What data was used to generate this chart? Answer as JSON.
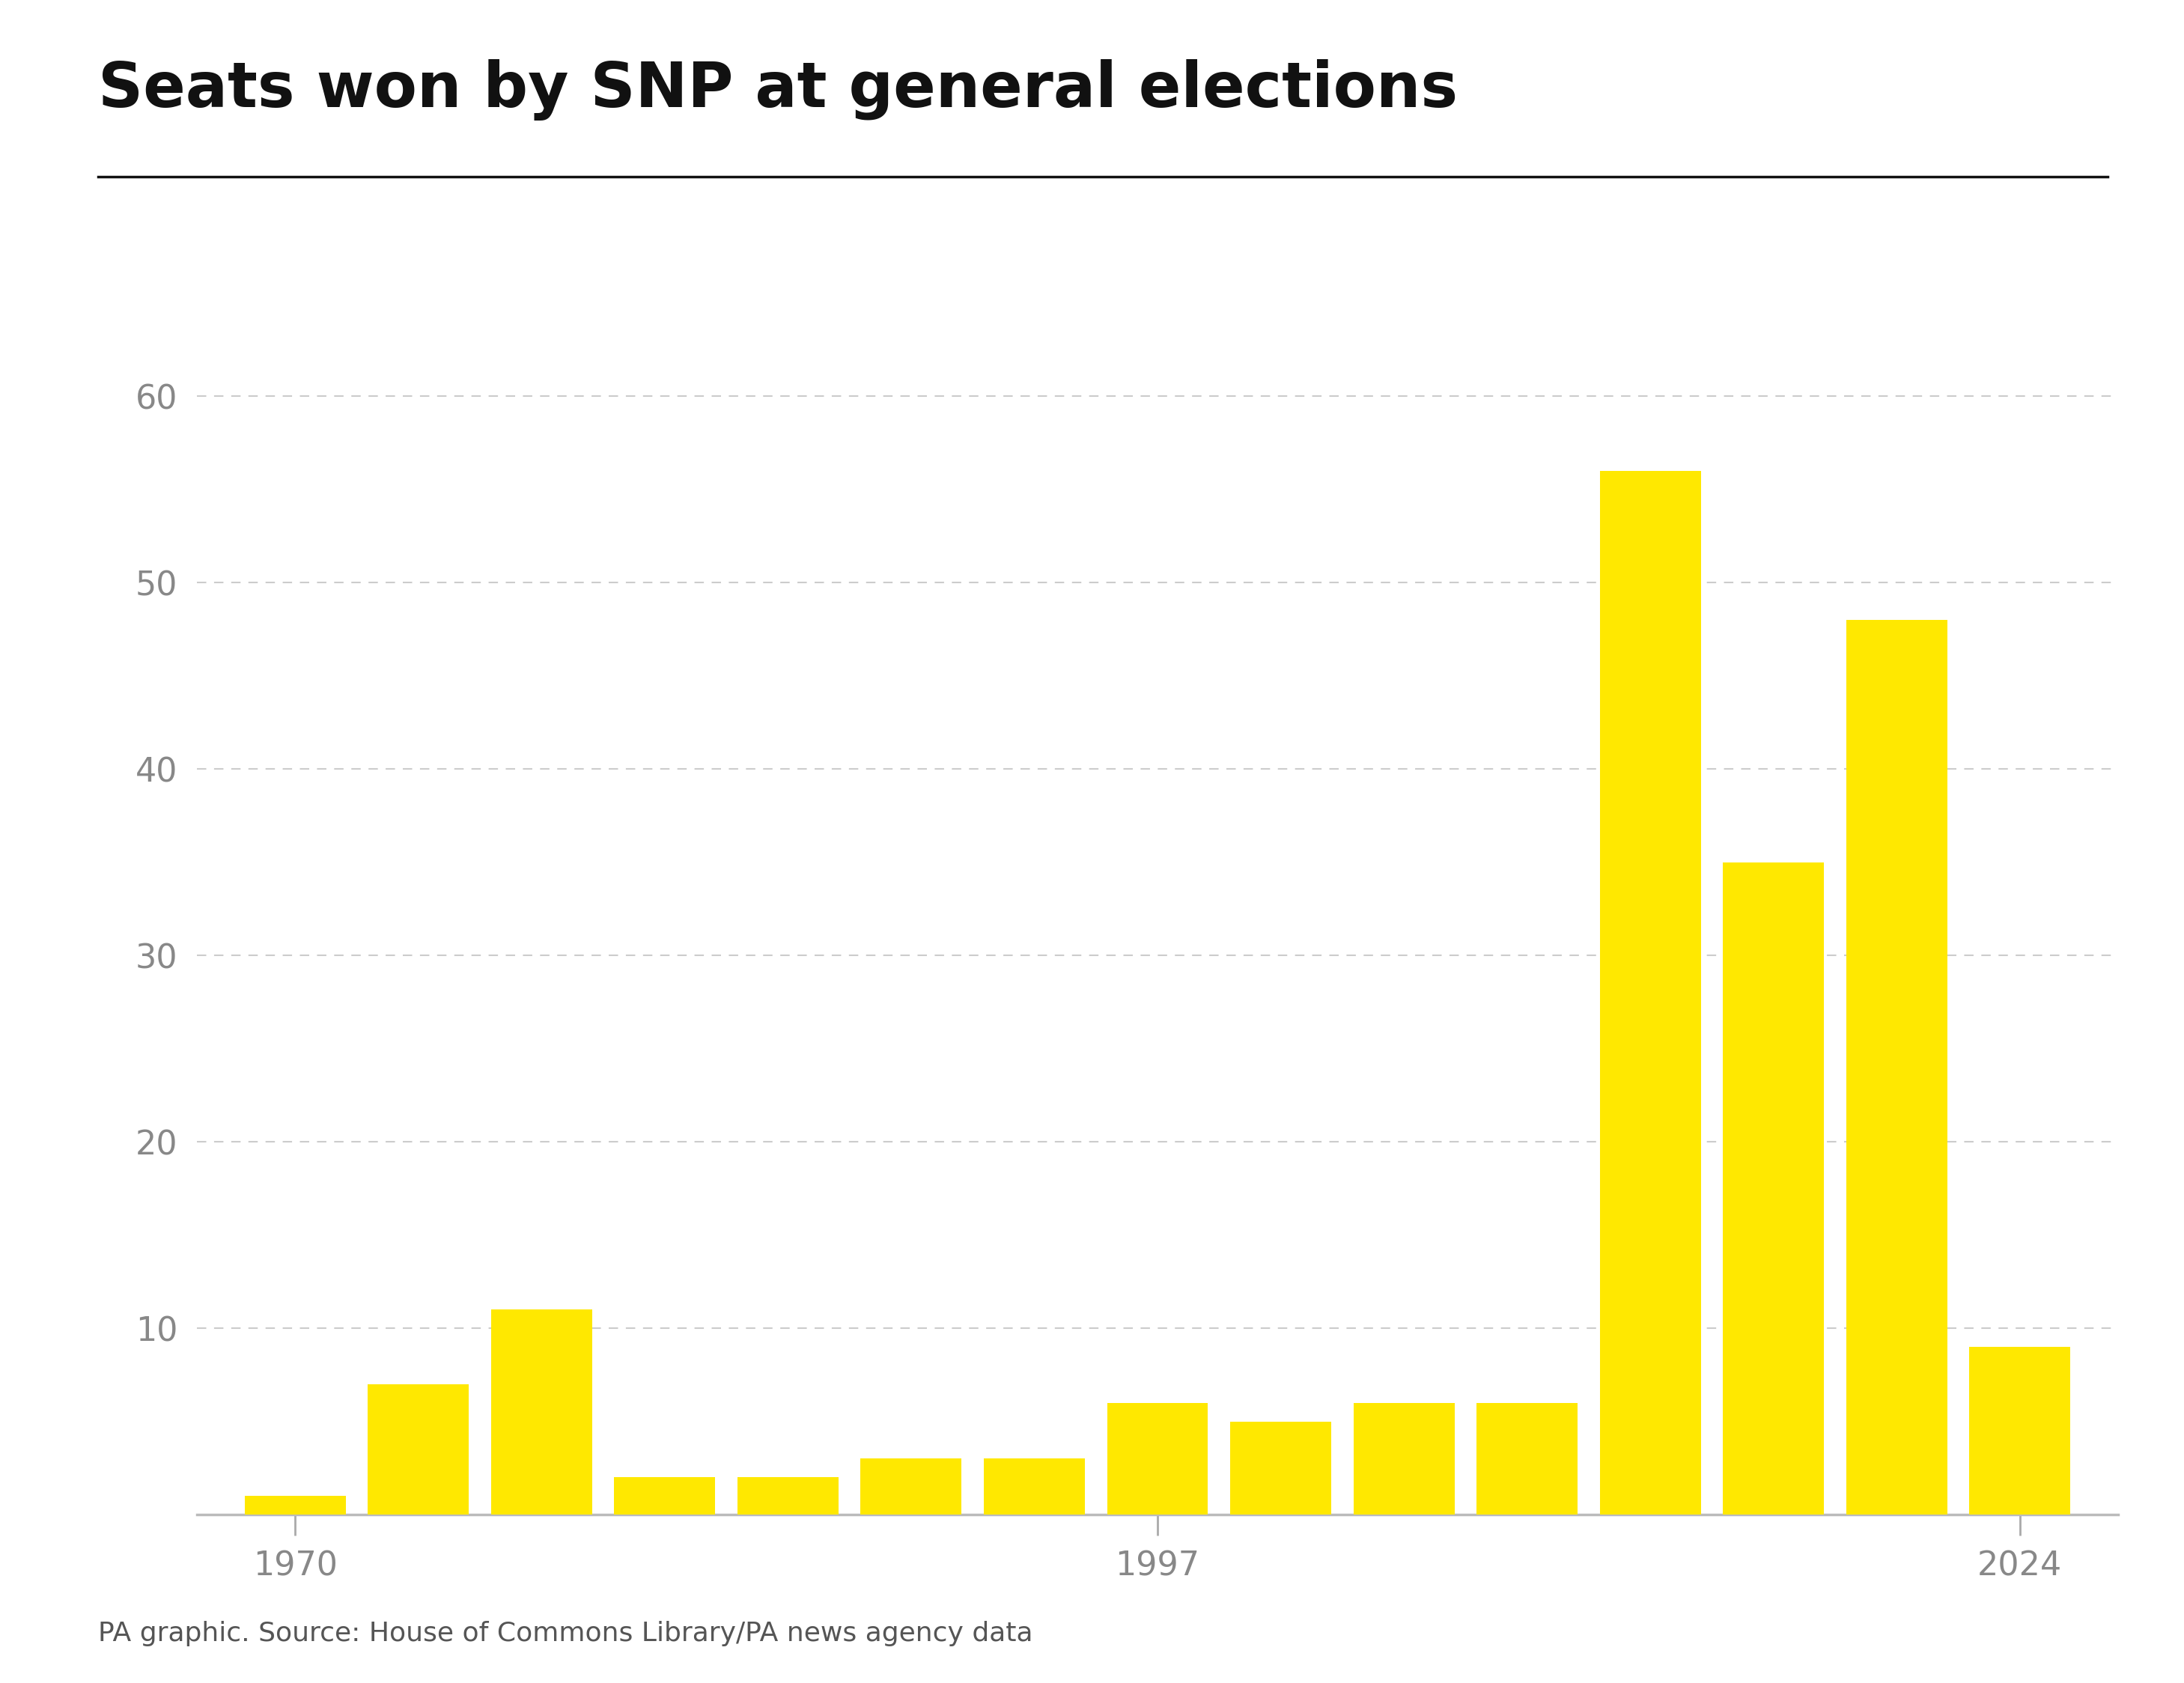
{
  "title": "Seats won by SNP at general elections",
  "source_text": "PA graphic. Source: House of Commons Library/PA news agency data",
  "seats": [
    1,
    7,
    11,
    2,
    2,
    3,
    3,
    6,
    5,
    6,
    6,
    56,
    35,
    48,
    9
  ],
  "bar_color": "#FFE800",
  "background_color": "#ffffff",
  "axis_label_color": "#888888",
  "title_color": "#111111",
  "source_color": "#555555",
  "yticks": [
    10,
    20,
    30,
    40,
    50,
    60
  ],
  "ylim": [
    0,
    65
  ],
  "title_fontsize": 60,
  "source_fontsize": 26,
  "tick_fontsize": 32,
  "grid_color": "#cccccc",
  "bottom_spine_color": "#bbbbbb",
  "xtick_label_indices": [
    0,
    7,
    14
  ],
  "xtick_labels": [
    "1970",
    "1997",
    "2024"
  ]
}
